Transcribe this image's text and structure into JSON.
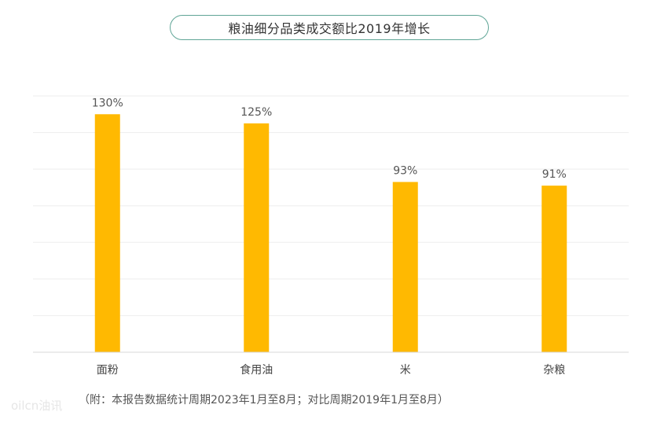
{
  "chart_data": {
    "type": "bar",
    "title": "粮油细分品类成交额比2019年增长",
    "categories": [
      "面粉",
      "食用油",
      "米",
      "杂粮"
    ],
    "values": [
      130,
      125,
      93,
      91
    ],
    "value_labels": [
      "130%",
      "125%",
      "93%",
      "91%"
    ],
    "unit": "%",
    "ylim": [
      0,
      140
    ],
    "grid": true,
    "bar_color": "#ffb901",
    "legend": "none"
  },
  "footnote": "（附：本报告数据统计周期2023年1月至8月；对比周期2019年1月至8月）",
  "watermark": "oilcn油讯"
}
